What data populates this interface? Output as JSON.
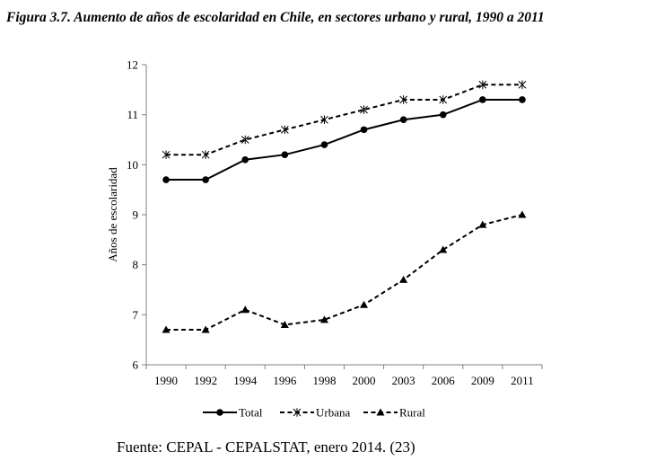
{
  "figure": {
    "title": "Figura 3.7. Aumento de años de escolaridad en Chile, en sectores urbano y rural, 1990 a 2011",
    "source": "Fuente: CEPAL - CEPALSTAT, enero 2014. (23)"
  },
  "chart_data": {
    "type": "line",
    "title": "",
    "xlabel": "",
    "ylabel": "Años de escolaridad",
    "categories": [
      "1990",
      "1992",
      "1994",
      "1996",
      "1998",
      "2000",
      "2003",
      "2006",
      "2009",
      "2011"
    ],
    "ylim": [
      6,
      12
    ],
    "yticks": [
      6,
      7,
      8,
      9,
      10,
      11,
      12
    ],
    "grid": false,
    "legend": "bottom",
    "series": [
      {
        "name": "Total",
        "marker": "circle",
        "dash": "solid",
        "color": "#000000",
        "values": [
          9.7,
          9.7,
          10.1,
          10.2,
          10.4,
          10.7,
          10.9,
          11.0,
          11.3,
          11.3
        ]
      },
      {
        "name": "Urbana",
        "marker": "asterisk",
        "dash": "dashed",
        "color": "#000000",
        "values": [
          10.2,
          10.2,
          10.5,
          10.7,
          10.9,
          11.1,
          11.3,
          11.3,
          11.6,
          11.6
        ]
      },
      {
        "name": "Rural",
        "marker": "triangle",
        "dash": "dashed",
        "color": "#000000",
        "values": [
          6.7,
          6.7,
          7.1,
          6.8,
          6.9,
          7.2,
          7.7,
          8.3,
          8.8,
          9.0
        ]
      }
    ]
  }
}
